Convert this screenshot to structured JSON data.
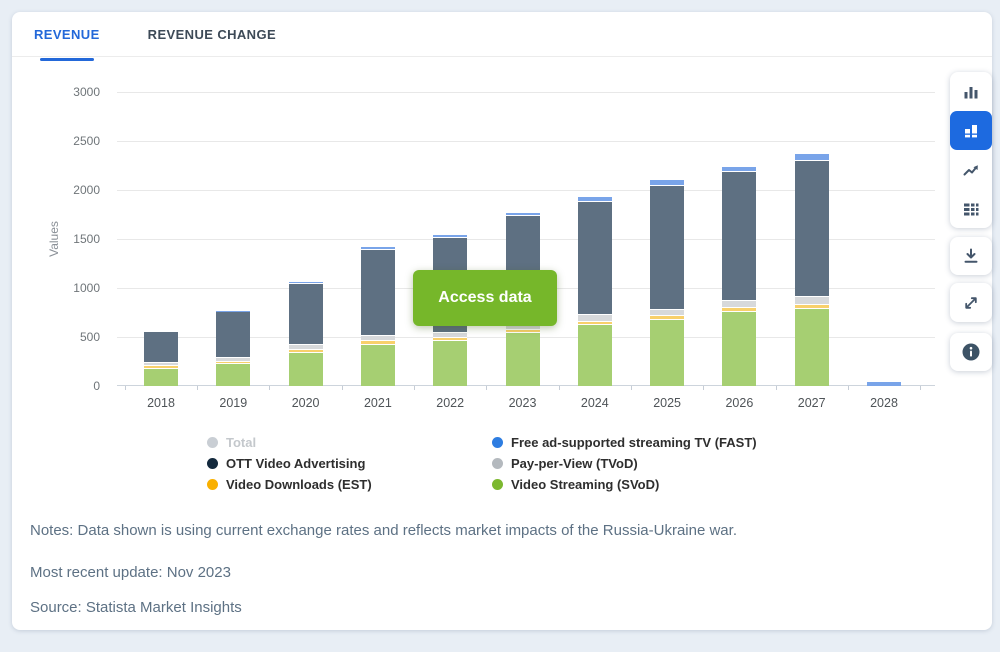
{
  "tabs": [
    {
      "label": "REVENUE",
      "active": true
    },
    {
      "label": "REVENUE CHANGE",
      "active": false
    }
  ],
  "chart_data": {
    "type": "bar",
    "stacked": true,
    "title": "",
    "xlabel": "",
    "ylabel": "Values",
    "ylim": [
      0,
      3000
    ],
    "yticks": [
      0,
      500,
      1000,
      1500,
      2000,
      2500,
      3000
    ],
    "grid": true,
    "legend_position": "bottom",
    "categories": [
      "2018",
      "2019",
      "2020",
      "2021",
      "2022",
      "2023",
      "2024",
      "2025",
      "2026",
      "2027",
      "2028"
    ],
    "series": [
      {
        "name": "Video Streaming (SVoD)",
        "bar_color": "#a6cf72",
        "legend_color": "#7cb82f",
        "values": [
          180,
          230,
          345,
          430,
          465,
          550,
          630,
          685,
          765,
          800,
          0
        ]
      },
      {
        "name": "Video Downloads (EST)",
        "bar_color": "#f8d06b",
        "legend_color": "#f9b000",
        "values": [
          30,
          30,
          35,
          35,
          35,
          35,
          35,
          35,
          40,
          40,
          0
        ]
      },
      {
        "name": "Pay-per-View (TVoD)",
        "bar_color": "#d7d9db",
        "legend_color": "#b4b9be",
        "values": [
          40,
          40,
          50,
          55,
          55,
          60,
          65,
          70,
          75,
          80,
          0
        ]
      },
      {
        "name": "OTT Video Advertising",
        "bar_color": "#5e7082",
        "legend_color": "#13293d",
        "values": [
          310,
          465,
          625,
          880,
          970,
          1100,
          1160,
          1265,
          1310,
          1390,
          0
        ]
      },
      {
        "name": "Free ad-supported streaming TV (FAST)",
        "bar_color": "#79a4e9",
        "legend_color": "#2e7de1",
        "values": [
          0,
          5,
          10,
          15,
          25,
          35,
          45,
          55,
          60,
          65,
          55
        ]
      }
    ]
  },
  "legend": {
    "columns": [
      [
        {
          "label": "Total",
          "color": "#c9ced4",
          "disabled": true
        },
        {
          "label": "OTT Video Advertising",
          "color": "#13293d",
          "disabled": false
        },
        {
          "label": "Video Downloads (EST)",
          "color": "#f9b000",
          "disabled": false
        }
      ],
      [
        {
          "label": "Free ad-supported streaming TV (FAST)",
          "color": "#2e7de1",
          "disabled": false
        },
        {
          "label": "Pay-per-View (TVoD)",
          "color": "#b4b9be",
          "disabled": false
        },
        {
          "label": "Video Streaming (SVoD)",
          "color": "#7cb82f",
          "disabled": false
        }
      ]
    ]
  },
  "overlay_button": {
    "label": "Access data",
    "color": "#76b72a"
  },
  "notes": {
    "line1": "Notes: Data shown is using current exchange rates and reflects market impacts of the Russia-Ukraine war.",
    "line2": "Most recent update: Nov 2023",
    "line3": "Source: Statista Market Insights"
  },
  "toolbar": {
    "active_color": "#1d6ae0",
    "buttons": [
      "column-chart",
      "stacked-chart",
      "line-chart",
      "data-table",
      "download",
      "fullscreen",
      "info"
    ],
    "active_button": "stacked-chart"
  },
  "colors": {
    "accent_blue": "#2368d9",
    "page_bg": "#e8eef5"
  }
}
